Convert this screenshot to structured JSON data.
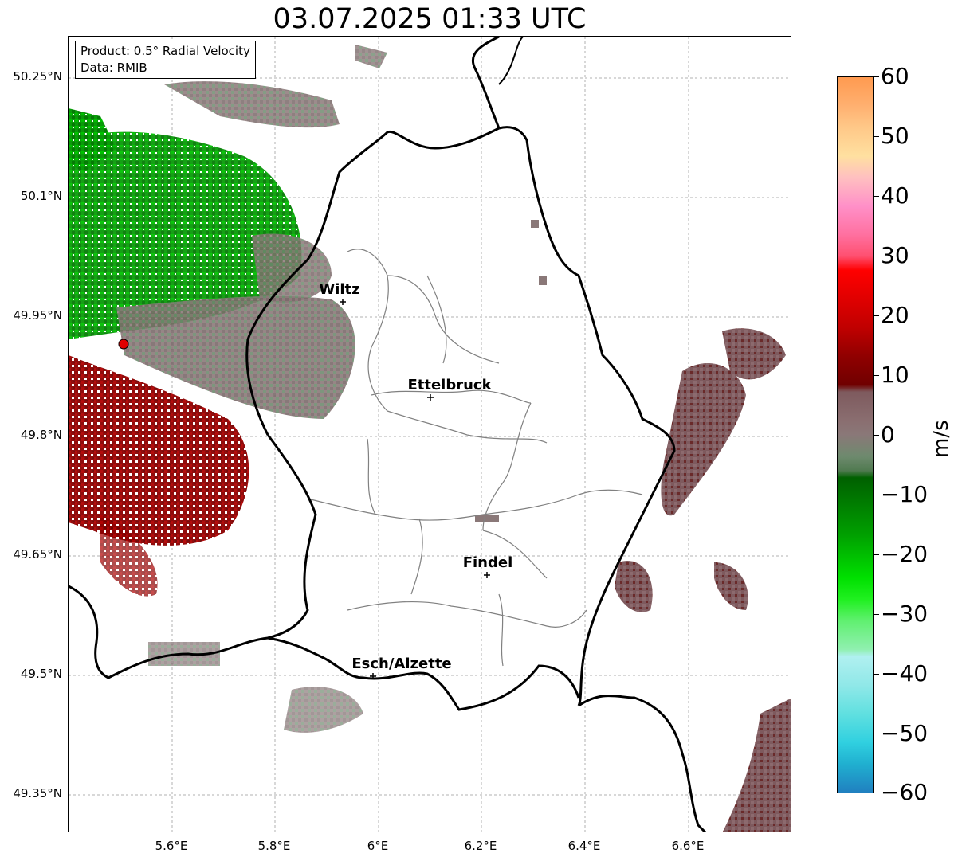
{
  "title": "03.07.2025 01:33 UTC",
  "info": {
    "product": "Product: 0.5° Radial Velocity",
    "data": "Data: RMIB"
  },
  "lat_labels": [
    "50.25°N",
    "50.1°N",
    "49.95°N",
    "49.8°N",
    "49.65°N",
    "49.5°N",
    "49.35°N"
  ],
  "lon_labels": [
    "5.6°E",
    "5.8°E",
    "6°E",
    "6.2°E",
    "6.4°E",
    "6.6°E"
  ],
  "cities": [
    {
      "name": "Wiltz",
      "lat": 49.97,
      "lon": 5.93
    },
    {
      "name": "Ettelbruck",
      "lat": 49.85,
      "lon": 6.1
    },
    {
      "name": "Findel",
      "lat": 49.63,
      "lon": 6.21
    },
    {
      "name": "Esch/Alzette",
      "lat": 49.5,
      "lon": 5.99
    }
  ],
  "radar_site": {
    "lat": 49.915,
    "lon": 5.505
  },
  "colorbar": {
    "unit": "m/s",
    "ticks": [
      "60",
      "50",
      "40",
      "30",
      "20",
      "10",
      "0",
      "−10",
      "−20",
      "−30",
      "−40",
      "−50",
      "−60"
    ]
  },
  "colors": {
    "positive_strong": "#8b0000",
    "positive_red": "#e00000",
    "neutral": "#8a7878",
    "negative_green": "#00a000",
    "border": "#000000",
    "canton": "#808080"
  }
}
